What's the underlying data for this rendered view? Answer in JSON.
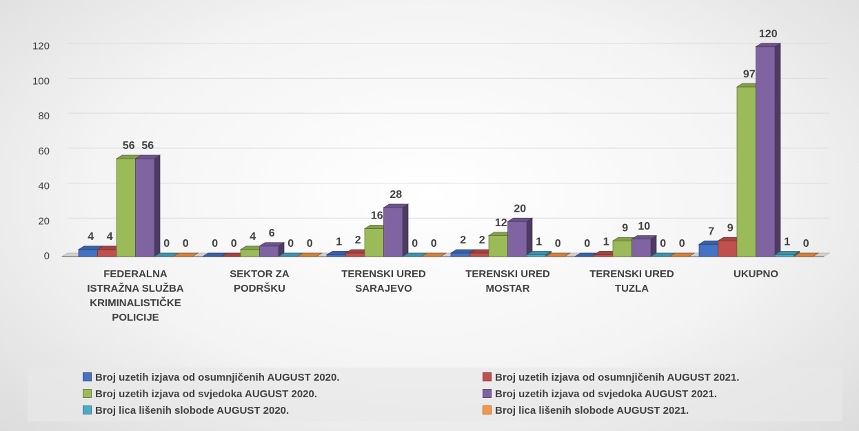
{
  "chart_data": {
    "type": "bar",
    "categories": [
      "FEDERALNA ISTRAŽNA SLUŽBA KRIMINALISTIČKE POLICIJE",
      "SEKTOR ZA PODRŠKU",
      "TERENSKI URED SARAJEVO",
      "TERENSKI URED MOSTAR",
      "TERENSKI URED TUZLA",
      "UKUPNO"
    ],
    "series": [
      {
        "name": "Broj uzetih izjava od osumnjičenih AUGUST 2020.",
        "color": "#4472c4",
        "values": [
          4,
          0,
          1,
          2,
          0,
          7
        ]
      },
      {
        "name": "Broj uzetih izjava od osumnjičenih AUGUST 2021.",
        "color": "#c0504d",
        "values": [
          4,
          0,
          2,
          2,
          1,
          9
        ]
      },
      {
        "name": "Broj uzetih izjava od svjedoka AUGUST 2020.",
        "color": "#9bbb59",
        "values": [
          56,
          4,
          16,
          12,
          9,
          97
        ]
      },
      {
        "name": "Broj uzetih izjava od svjedoka AUGUST 2021.",
        "color": "#8064a2",
        "values": [
          56,
          6,
          28,
          20,
          10,
          120
        ]
      },
      {
        "name": "Broj lica lišenih slobode AUGUST 2020.",
        "color": "#4bacc6",
        "values": [
          0,
          0,
          0,
          1,
          0,
          1
        ]
      },
      {
        "name": "Broj lica lišenih slobode AUGUST 2021.",
        "color": "#f79646",
        "values": [
          0,
          0,
          0,
          0,
          0,
          0
        ]
      }
    ],
    "ylim": [
      0,
      140
    ],
    "yticks": [
      0,
      20,
      40,
      60,
      80,
      100,
      120
    ],
    "grid": true,
    "legend": "bottom"
  }
}
